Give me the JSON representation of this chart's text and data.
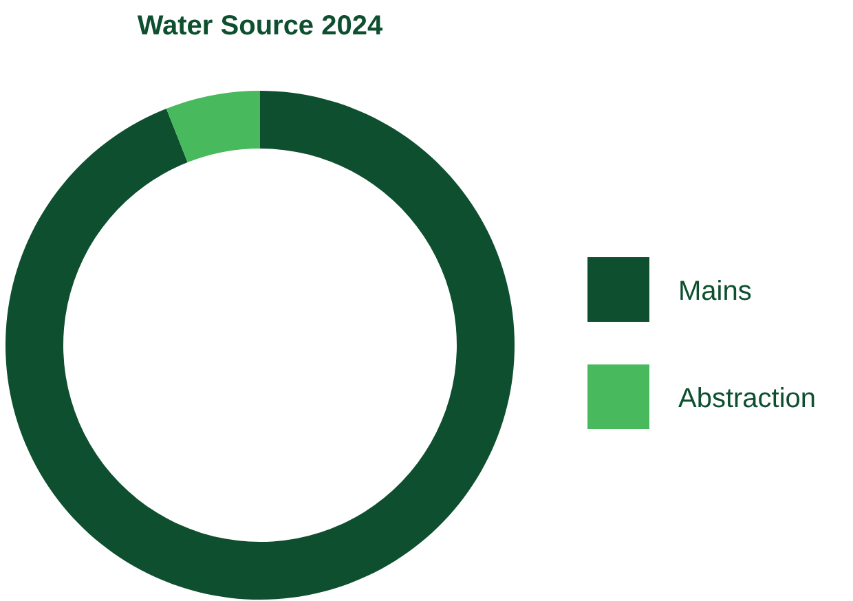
{
  "chart_data": {
    "type": "donut",
    "title": "Water Source 2024",
    "categories": [
      "Mains",
      "Abstraction"
    ],
    "values": [
      94,
      6
    ],
    "colors": [
      "#0d4f2e",
      "#48b95c"
    ],
    "legend": "right"
  }
}
